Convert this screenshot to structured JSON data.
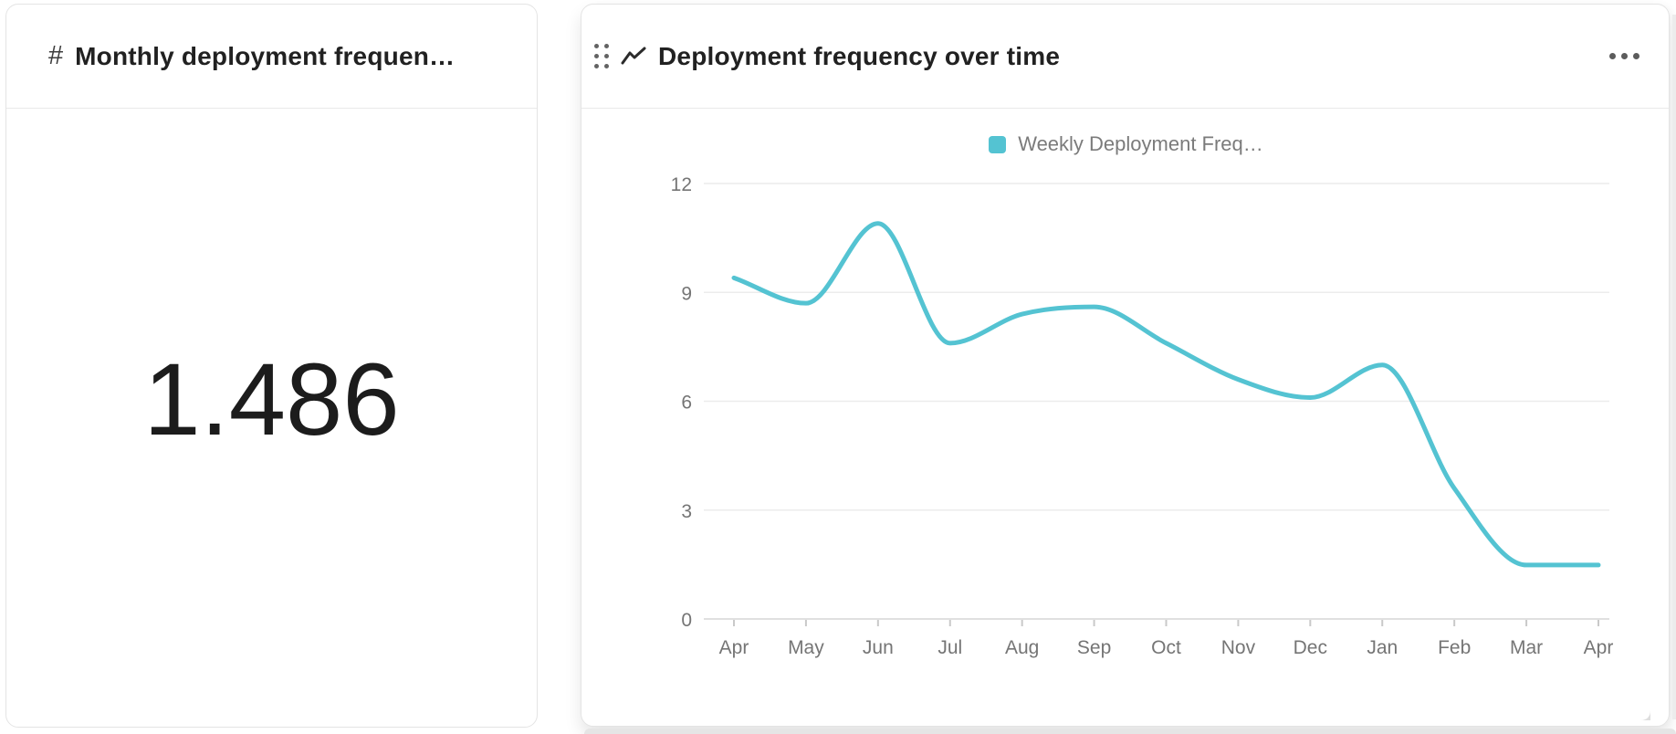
{
  "metric_card": {
    "icon_glyph": "#",
    "title": "Monthly deployment frequen…",
    "value": "1.486"
  },
  "chart_card": {
    "title": "Deployment frequency over time"
  },
  "chart_data": {
    "type": "line",
    "title": "Deployment frequency over time",
    "categories": [
      "Apr",
      "May",
      "Jun",
      "Jul",
      "Aug",
      "Sep",
      "Oct",
      "Nov",
      "Dec",
      "Jan",
      "Feb",
      "Mar",
      "Apr"
    ],
    "series": [
      {
        "name": "Weekly Deployment Freq…",
        "values": [
          9.4,
          8.7,
          10.9,
          7.6,
          8.4,
          8.6,
          7.6,
          6.6,
          6.1,
          7.0,
          3.6,
          1.486,
          1.486
        ],
        "color": "#54c3d2"
      }
    ],
    "xlabel": "",
    "ylabel": "",
    "ylim": [
      0,
      12
    ],
    "yticks": [
      0,
      3,
      6,
      9,
      12
    ],
    "grid": true,
    "legend_position": "top",
    "line_style": "smooth",
    "colors": {
      "gridline": "#ececec",
      "axis_line": "#e0e0e0",
      "tick_mark": "#c9c9c9",
      "axis_text": "#757575"
    }
  }
}
